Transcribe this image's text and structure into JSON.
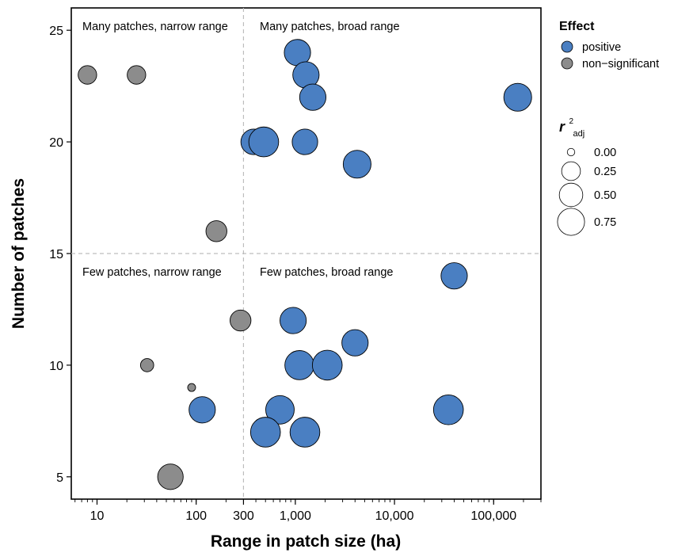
{
  "chart_data": {
    "type": "scatter",
    "xlabel": "Range in patch size (ha)",
    "ylabel": "Number of patches",
    "x_scale": "log10",
    "xlim": [
      5.5,
      300000
    ],
    "ylim": [
      4.0,
      26.0
    ],
    "x_ticks": [
      {
        "value": 10,
        "label": "10"
      },
      {
        "value": 100,
        "label": "100"
      },
      {
        "value": 300,
        "label": "300"
      },
      {
        "value": 1000,
        "label": "1,000"
      },
      {
        "value": 10000,
        "label": "10,000"
      },
      {
        "value": 100000,
        "label": "100,000"
      }
    ],
    "y_ticks": [
      {
        "value": 5,
        "label": "5"
      },
      {
        "value": 10,
        "label": "10"
      },
      {
        "value": 15,
        "label": "15"
      },
      {
        "value": 20,
        "label": "20"
      },
      {
        "value": 25,
        "label": "25"
      }
    ],
    "reference_lines": {
      "x": 300,
      "y": 15,
      "style": "dashed"
    },
    "quadrant_labels": [
      "Many patches, narrow range",
      "Many patches, broad range",
      "Few patches, narrow range",
      "Few patches, broad range"
    ],
    "grid": false,
    "legend_position": "right",
    "color_legend": {
      "title": "Effect",
      "entries": [
        {
          "label": "positive",
          "color": "#4a7fc2"
        },
        {
          "label": "non−significant",
          "color": "#8c8c8c"
        }
      ]
    },
    "size_legend": {
      "title_main": "r",
      "title_sup": "2",
      "title_sub": "adj",
      "entries": [
        {
          "label": "0.00",
          "value": 0.0
        },
        {
          "label": "0.25",
          "value": 0.25
        },
        {
          "label": "0.50",
          "value": 0.5
        },
        {
          "label": "0.75",
          "value": 0.75
        }
      ]
    },
    "series": [
      {
        "name": "positive",
        "color": "#4a7fc2",
        "points": [
          {
            "x": 1050,
            "y": 24,
            "r2": 0.6
          },
          {
            "x": 1280,
            "y": 23,
            "r2": 0.6
          },
          {
            "x": 1500,
            "y": 22,
            "r2": 0.6
          },
          {
            "x": 175000,
            "y": 22,
            "r2": 0.7
          },
          {
            "x": 380,
            "y": 20,
            "r2": 0.55
          },
          {
            "x": 480,
            "y": 20,
            "r2": 0.85
          },
          {
            "x": 1250,
            "y": 20,
            "r2": 0.55
          },
          {
            "x": 4200,
            "y": 19,
            "r2": 0.7
          },
          {
            "x": 40000,
            "y": 14,
            "r2": 0.6
          },
          {
            "x": 950,
            "y": 12,
            "r2": 0.6
          },
          {
            "x": 4000,
            "y": 11,
            "r2": 0.6
          },
          {
            "x": 1100,
            "y": 10,
            "r2": 0.8
          },
          {
            "x": 2100,
            "y": 10,
            "r2": 0.85
          },
          {
            "x": 115,
            "y": 8,
            "r2": 0.6
          },
          {
            "x": 700,
            "y": 8,
            "r2": 0.75
          },
          {
            "x": 35000,
            "y": 8,
            "r2": 0.85
          },
          {
            "x": 500,
            "y": 7,
            "r2": 0.85
          },
          {
            "x": 1250,
            "y": 7,
            "r2": 0.85
          }
        ]
      },
      {
        "name": "non−significant",
        "color": "#8c8c8c",
        "points": [
          {
            "x": 8,
            "y": 23,
            "r2": 0.2
          },
          {
            "x": 25,
            "y": 23,
            "r2": 0.2
          },
          {
            "x": 160,
            "y": 16,
            "r2": 0.3
          },
          {
            "x": 280,
            "y": 12,
            "r2": 0.3
          },
          {
            "x": 32,
            "y": 10,
            "r2": 0.05
          },
          {
            "x": 90,
            "y": 9,
            "r2": 0.0
          },
          {
            "x": 55,
            "y": 5,
            "r2": 0.55
          }
        ]
      }
    ]
  }
}
